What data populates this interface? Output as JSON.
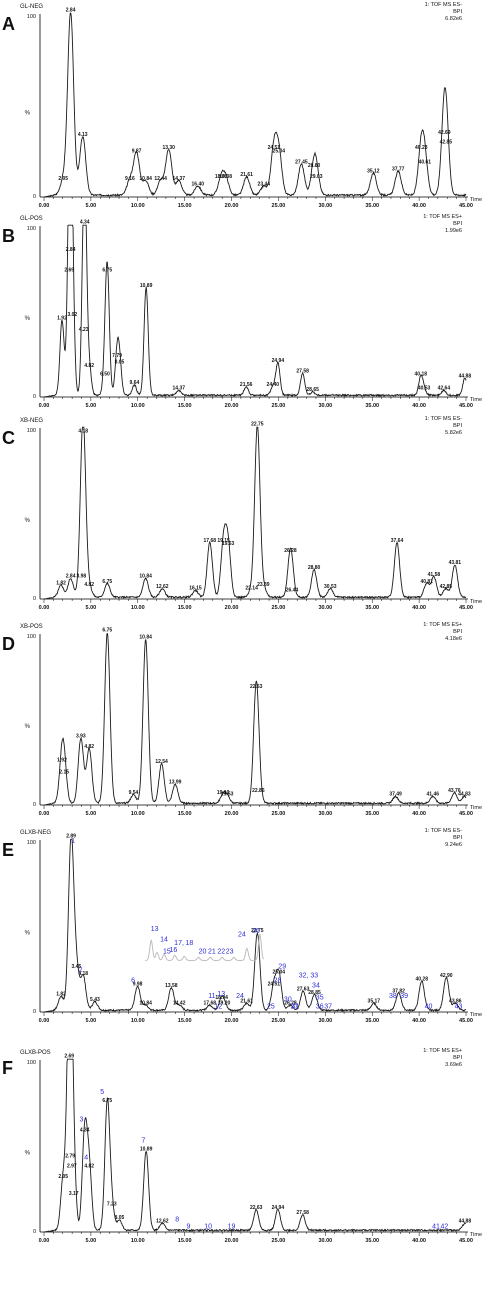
{
  "chart_data": [
    {
      "type": "line",
      "panel_label": "A",
      "sample": "GL-NEG",
      "header": [
        "1: TOF MS ES-",
        "BPI",
        "6.82e6"
      ],
      "y_axis": {
        "label": "%",
        "ticks": [
          "100",
          "0"
        ]
      },
      "x_axis": {
        "label": "Time",
        "range": [
          0,
          45
        ],
        "ticks": [
          "0.00",
          "5.00",
          "10.00",
          "15.00",
          "20.00",
          "25.00",
          "30.00",
          "35.00",
          "40.00",
          "45.00"
        ]
      },
      "peaks": [
        {
          "t": 2.05,
          "y": 8,
          "label": "2.05"
        },
        {
          "t": 2.84,
          "y": 100,
          "label": "2.84"
        },
        {
          "t": 4.13,
          "y": 32,
          "label": "4.13"
        },
        {
          "t": 9.16,
          "y": 8,
          "label": "9.16"
        },
        {
          "t": 9.87,
          "y": 23,
          "label": "9.87"
        },
        {
          "t": 10.84,
          "y": 8,
          "label": "10.84"
        },
        {
          "t": 12.44,
          "y": 8,
          "label": "12.44"
        },
        {
          "t": 13.3,
          "y": 25,
          "label": "13.30"
        },
        {
          "t": 14.37,
          "y": 8,
          "label": "14.37"
        },
        {
          "t": 16.4,
          "y": 5,
          "label": "16.40"
        },
        {
          "t": 18.89,
          "y": 9,
          "label": "18.89"
        },
        {
          "t": 19.38,
          "y": 9,
          "label": "19.38"
        },
        {
          "t": 21.61,
          "y": 10,
          "label": "21.61"
        },
        {
          "t": 23.44,
          "y": 5,
          "label": "23.44"
        },
        {
          "t": 24.51,
          "y": 25,
          "label": "24.51"
        },
        {
          "t": 25.04,
          "y": 23,
          "label": "25.04"
        },
        {
          "t": 27.45,
          "y": 17,
          "label": "27.45"
        },
        {
          "t": 28.8,
          "y": 15,
          "label": "28.80"
        },
        {
          "t": 29.03,
          "y": 9,
          "label": "29.03"
        },
        {
          "t": 35.12,
          "y": 12,
          "label": "35.12"
        },
        {
          "t": 37.77,
          "y": 13,
          "label": "37.77"
        },
        {
          "t": 40.23,
          "y": 25,
          "label": "40.23"
        },
        {
          "t": 40.61,
          "y": 17,
          "label": "40.61"
        },
        {
          "t": 42.69,
          "y": 33,
          "label": "42.69"
        },
        {
          "t": 42.85,
          "y": 28,
          "label": "42.85"
        }
      ],
      "annotations": []
    },
    {
      "type": "line",
      "panel_label": "B",
      "sample": "GL-POS",
      "header": [
        "1: TOF MS ES+",
        "BPI",
        "1.99e6"
      ],
      "y_axis": {
        "label": "%",
        "ticks": [
          "100",
          "0"
        ]
      },
      "x_axis": {
        "label": "Time",
        "range": [
          0,
          45
        ],
        "ticks": [
          "0.00",
          "5.00",
          "10.00",
          "15.00",
          "20.00",
          "25.00",
          "30.00",
          "35.00",
          "40.00",
          "45.00"
        ]
      },
      "peaks": [
        {
          "t": 1.92,
          "y": 44,
          "label": "1.92"
        },
        {
          "t": 2.69,
          "y": 72,
          "label": "2.69"
        },
        {
          "t": 2.84,
          "y": 84,
          "label": "2.84"
        },
        {
          "t": 3.02,
          "y": 46,
          "label": "3.02"
        },
        {
          "t": 4.23,
          "y": 37,
          "label": "4.23"
        },
        {
          "t": 4.34,
          "y": 100,
          "label": "4.34"
        },
        {
          "t": 4.82,
          "y": 16,
          "label": "4.82"
        },
        {
          "t": 6.5,
          "y": 11,
          "label": "6.50"
        },
        {
          "t": 6.75,
          "y": 72,
          "label": "6.75"
        },
        {
          "t": 7.79,
          "y": 22,
          "label": "7.79"
        },
        {
          "t": 8.05,
          "y": 18,
          "label": "8.05"
        },
        {
          "t": 9.64,
          "y": 6,
          "label": "9.64"
        },
        {
          "t": 10.89,
          "y": 63,
          "label": "10.89"
        },
        {
          "t": 14.37,
          "y": 3,
          "label": "14.37"
        },
        {
          "t": 21.56,
          "y": 5,
          "label": "21.56"
        },
        {
          "t": 24.4,
          "y": 5,
          "label": "24.40"
        },
        {
          "t": 24.94,
          "y": 19,
          "label": "24.94"
        },
        {
          "t": 27.58,
          "y": 13,
          "label": "27.58"
        },
        {
          "t": 28.65,
          "y": 2,
          "label": "28.65"
        },
        {
          "t": 40.18,
          "y": 11,
          "label": "40.18"
        },
        {
          "t": 40.53,
          "y": 3,
          "label": "40.53"
        },
        {
          "t": 42.64,
          "y": 3,
          "label": "42.64"
        },
        {
          "t": 44.88,
          "y": 10,
          "label": "44.88"
        }
      ],
      "annotations": []
    },
    {
      "type": "line",
      "panel_label": "C",
      "sample": "XB-NEG",
      "header": [
        "1: TOF MS ES-",
        "BPI",
        "5.82e6"
      ],
      "y_axis": {
        "label": "%",
        "ticks": [
          "100",
          "0"
        ]
      },
      "x_axis": {
        "label": "Time",
        "range": [
          0,
          45
        ],
        "ticks": [
          "0.00",
          "5.00",
          "10.00",
          "15.00",
          "20.00",
          "25.00",
          "30.00",
          "35.00",
          "40.00",
          "45.00"
        ]
      },
      "peaks": [
        {
          "t": 1.82,
          "y": 7,
          "label": "1.82"
        },
        {
          "t": 2.84,
          "y": 11,
          "label": "2.84"
        },
        {
          "t": 3.98,
          "y": 11,
          "label": "3.98"
        },
        {
          "t": 4.18,
          "y": 96,
          "label": "4.18"
        },
        {
          "t": 4.82,
          "y": 6,
          "label": "4.82"
        },
        {
          "t": 6.75,
          "y": 8,
          "label": "6.75"
        },
        {
          "t": 10.84,
          "y": 11,
          "label": "10.84"
        },
        {
          "t": 12.62,
          "y": 5,
          "label": "12.62"
        },
        {
          "t": 16.15,
          "y": 4,
          "label": "16.15"
        },
        {
          "t": 17.68,
          "y": 32,
          "label": "17.68"
        },
        {
          "t": 19.15,
          "y": 32,
          "label": "19.15"
        },
        {
          "t": 19.63,
          "y": 30,
          "label": "19.63"
        },
        {
          "t": 22.14,
          "y": 4,
          "label": "22.14"
        },
        {
          "t": 22.75,
          "y": 100,
          "label": "22.75"
        },
        {
          "t": 23.39,
          "y": 6,
          "label": "23.39"
        },
        {
          "t": 26.28,
          "y": 26,
          "label": "26.28"
        },
        {
          "t": 26.44,
          "y": 3,
          "label": "26.44"
        },
        {
          "t": 28.8,
          "y": 16,
          "label": "28.80"
        },
        {
          "t": 30.53,
          "y": 5,
          "label": "30.53"
        },
        {
          "t": 37.64,
          "y": 32,
          "label": "37.64"
        },
        {
          "t": 40.81,
          "y": 8,
          "label": "40.81"
        },
        {
          "t": 41.58,
          "y": 12,
          "label": "41.58"
        },
        {
          "t": 42.85,
          "y": 5,
          "label": "42.85"
        },
        {
          "t": 43.81,
          "y": 19,
          "label": "43.81"
        }
      ],
      "annotations": []
    },
    {
      "type": "line",
      "panel_label": "D",
      "sample": "XB-POS",
      "header": [
        "1: TOF MS ES+",
        "BPI",
        "4.18e6"
      ],
      "y_axis": {
        "label": "%",
        "ticks": [
          "100",
          "0"
        ]
      },
      "x_axis": {
        "label": "Time",
        "range": [
          0,
          45
        ],
        "ticks": [
          "0.00",
          "5.00",
          "10.00",
          "15.00",
          "20.00",
          "25.00",
          "30.00",
          "35.00",
          "40.00",
          "45.00"
        ]
      },
      "peaks": [
        {
          "t": 1.92,
          "y": 24,
          "label": "1.92"
        },
        {
          "t": 2.15,
          "y": 17,
          "label": "2.15"
        },
        {
          "t": 3.93,
          "y": 38,
          "label": "3.93"
        },
        {
          "t": 4.82,
          "y": 32,
          "label": "4.82"
        },
        {
          "t": 6.75,
          "y": 100,
          "label": "6.75"
        },
        {
          "t": 9.54,
          "y": 5,
          "label": "9.54"
        },
        {
          "t": 10.84,
          "y": 96,
          "label": "10.84"
        },
        {
          "t": 12.54,
          "y": 23,
          "label": "12.54"
        },
        {
          "t": 13.99,
          "y": 11,
          "label": "13.99"
        },
        {
          "t": 19.1,
          "y": 5,
          "label": "19.10"
        },
        {
          "t": 19.53,
          "y": 4,
          "label": "19.53"
        },
        {
          "t": 22.63,
          "y": 67,
          "label": "22.63"
        },
        {
          "t": 22.86,
          "y": 6,
          "label": "22.86"
        },
        {
          "t": 37.49,
          "y": 4,
          "label": "37.49"
        },
        {
          "t": 41.46,
          "y": 4,
          "label": "41.46"
        },
        {
          "t": 43.76,
          "y": 6,
          "label": "43.76"
        },
        {
          "t": 44.83,
          "y": 4,
          "label": "44.83"
        }
      ],
      "annotations": []
    },
    {
      "type": "line",
      "panel_label": "E",
      "sample": "GLXB-NEG",
      "header": [
        "1: TOF MS ES-",
        "BPI",
        "9.24e6"
      ],
      "y_axis": {
        "label": "%",
        "ticks": [
          "100",
          "0"
        ]
      },
      "x_axis": {
        "label": "Time",
        "range": [
          0,
          45
        ],
        "ticks": [
          "0.00",
          "5.00",
          "10.00",
          "15.00",
          "20.00",
          "25.00",
          "30.00",
          "35.00",
          "40.00",
          "45.00"
        ]
      },
      "peaks": [
        {
          "t": 1.82,
          "y": 8,
          "label": "1.82"
        },
        {
          "t": 2.89,
          "y": 100,
          "label": "2.89"
        },
        {
          "t": 3.45,
          "y": 24,
          "label": "3.45"
        },
        {
          "t": 4.18,
          "y": 20,
          "label": "4.18"
        },
        {
          "t": 5.43,
          "y": 5,
          "label": "5.43"
        },
        {
          "t": 9.98,
          "y": 14,
          "label": "9.98"
        },
        {
          "t": 10.84,
          "y": 3,
          "label": "10.84"
        },
        {
          "t": 13.58,
          "y": 13,
          "label": "13.58"
        },
        {
          "t": 14.42,
          "y": 3,
          "label": "14.42"
        },
        {
          "t": 17.68,
          "y": 3,
          "label": "17.68"
        },
        {
          "t": 18.94,
          "y": 6,
          "label": "18.94"
        },
        {
          "t": 19.2,
          "y": 3,
          "label": "19.20"
        },
        {
          "t": 21.61,
          "y": 4,
          "label": "21.61"
        },
        {
          "t": 22.75,
          "y": 45,
          "label": "22.75"
        },
        {
          "t": 24.51,
          "y": 14,
          "label": "24.51"
        },
        {
          "t": 25.04,
          "y": 21,
          "label": "25.04"
        },
        {
          "t": 26.28,
          "y": 3,
          "label": "26.28"
        },
        {
          "t": 27.63,
          "y": 11,
          "label": "27.63"
        },
        {
          "t": 28.85,
          "y": 9,
          "label": "28.85"
        },
        {
          "t": 35.17,
          "y": 4,
          "label": "35.17"
        },
        {
          "t": 37.82,
          "y": 10,
          "label": "37.82"
        },
        {
          "t": 40.28,
          "y": 17,
          "label": "40.28"
        },
        {
          "t": 42.9,
          "y": 19,
          "label": "42.90"
        },
        {
          "t": 43.86,
          "y": 4,
          "label": "43.86"
        }
      ],
      "annotations": [
        {
          "text": "1",
          "t": 3.1,
          "y": 97
        },
        {
          "text": "2",
          "t": 3.9,
          "y": 22
        },
        {
          "text": "6",
          "t": 9.5,
          "y": 16
        },
        {
          "text": "11",
          "t": 17.9,
          "y": 7
        },
        {
          "text": "12",
          "t": 18.6,
          "y": 1
        },
        {
          "text": "13",
          "t": 18.9,
          "y": 8
        },
        {
          "text": "24",
          "t": 20.9,
          "y": 7
        },
        {
          "text": "25",
          "t": 24.2,
          "y": 1
        },
        {
          "text": "27",
          "t": 26.7,
          "y": 1
        },
        {
          "text": "28",
          "t": 24.9,
          "y": 16
        },
        {
          "text": "29",
          "t": 25.4,
          "y": 24
        },
        {
          "text": "30",
          "t": 26.0,
          "y": 5
        },
        {
          "text": "31",
          "t": 26.8,
          "y": 1
        },
        {
          "text": "32, 33",
          "t": 28.2,
          "y": 19
        },
        {
          "text": "34",
          "t": 29.0,
          "y": 13
        },
        {
          "text": "35",
          "t": 29.4,
          "y": 6
        },
        {
          "text": "36",
          "t": 29.4,
          "y": 1
        },
        {
          "text": "37",
          "t": 30.3,
          "y": 1
        },
        {
          "text": "38",
          "t": 37.2,
          "y": 7
        },
        {
          "text": "39",
          "t": 38.4,
          "y": 7
        },
        {
          "text": "40",
          "t": 41.0,
          "y": 1
        },
        {
          "text": "43",
          "t": 44.2,
          "y": 1
        }
      ],
      "inset": {
        "annotations": [
          {
            "text": "13",
            "t": 11.8,
            "y": 47
          },
          {
            "text": "14",
            "t": 12.8,
            "y": 41
          },
          {
            "text": "15",
            "t": 13.1,
            "y": 34
          },
          {
            "text": "16",
            "t": 13.8,
            "y": 35
          },
          {
            "text": "17,",
            "t": 14.4,
            "y": 39
          },
          {
            "text": "18",
            "t": 15.5,
            "y": 39
          },
          {
            "text": "20",
            "t": 16.9,
            "y": 34
          },
          {
            "text": "21",
            "t": 17.9,
            "y": 34
          },
          {
            "text": "22",
            "t": 18.9,
            "y": 34
          },
          {
            "text": "23",
            "t": 19.8,
            "y": 34
          },
          {
            "text": "24",
            "t": 21.1,
            "y": 44
          },
          {
            "text": "26",
            "t": 22.6,
            "y": 46
          }
        ]
      }
    },
    {
      "type": "line",
      "panel_label": "F",
      "sample": "GLXB-POS",
      "header": [
        "1: TOF MS ES+",
        "BPI",
        "3.69e6"
      ],
      "y_axis": {
        "label": "%",
        "ticks": [
          "100",
          "0"
        ]
      },
      "x_axis": {
        "label": "Time",
        "range": [
          0,
          45
        ],
        "ticks": [
          "0.00",
          "5.00",
          "10.00",
          "15.00",
          "20.00",
          "25.00",
          "30.00",
          "35.00",
          "40.00",
          "45.00"
        ]
      },
      "peaks": [
        {
          "t": 2.05,
          "y": 30,
          "label": "2.05"
        },
        {
          "t": 2.69,
          "y": 100,
          "label": "2.69"
        },
        {
          "t": 2.79,
          "y": 42,
          "label": "2.79"
        },
        {
          "t": 2.97,
          "y": 36,
          "label": "2.97"
        },
        {
          "t": 3.17,
          "y": 20,
          "label": "3.17"
        },
        {
          "t": 4.34,
          "y": 57,
          "label": "4.34"
        },
        {
          "t": 4.82,
          "y": 36,
          "label": "4.82"
        },
        {
          "t": 6.75,
          "y": 74,
          "label": "6.75"
        },
        {
          "t": 7.23,
          "y": 14,
          "label": "7.23"
        },
        {
          "t": 8.05,
          "y": 6,
          "label": "8.05"
        },
        {
          "t": 10.89,
          "y": 46,
          "label": "10.89"
        },
        {
          "t": 12.62,
          "y": 4,
          "label": "12.62"
        },
        {
          "t": 22.63,
          "y": 12,
          "label": "22.63"
        },
        {
          "t": 24.94,
          "y": 12,
          "label": "24.94"
        },
        {
          "t": 27.58,
          "y": 9,
          "label": "27.58"
        },
        {
          "t": 44.88,
          "y": 4,
          "label": "44.88"
        }
      ],
      "annotations": [
        {
          "text": "3",
          "t": 4.0,
          "y": 63
        },
        {
          "text": "4",
          "t": 4.5,
          "y": 41
        },
        {
          "text": "5",
          "t": 6.2,
          "y": 79
        },
        {
          "text": "7",
          "t": 10.6,
          "y": 51
        },
        {
          "text": "8",
          "t": 14.2,
          "y": 5
        },
        {
          "text": "9",
          "t": 15.4,
          "y": 1
        },
        {
          "text": "10",
          "t": 17.5,
          "y": 1
        },
        {
          "text": "19",
          "t": 20.0,
          "y": 1
        },
        {
          "text": "41",
          "t": 41.8,
          "y": 1
        },
        {
          "text": "42",
          "t": 42.7,
          "y": 1
        }
      ]
    }
  ],
  "colors": {
    "trace": "#1a1a1a",
    "annotation": "#2c2cd6",
    "inset_trace": "#b8b8b8"
  }
}
